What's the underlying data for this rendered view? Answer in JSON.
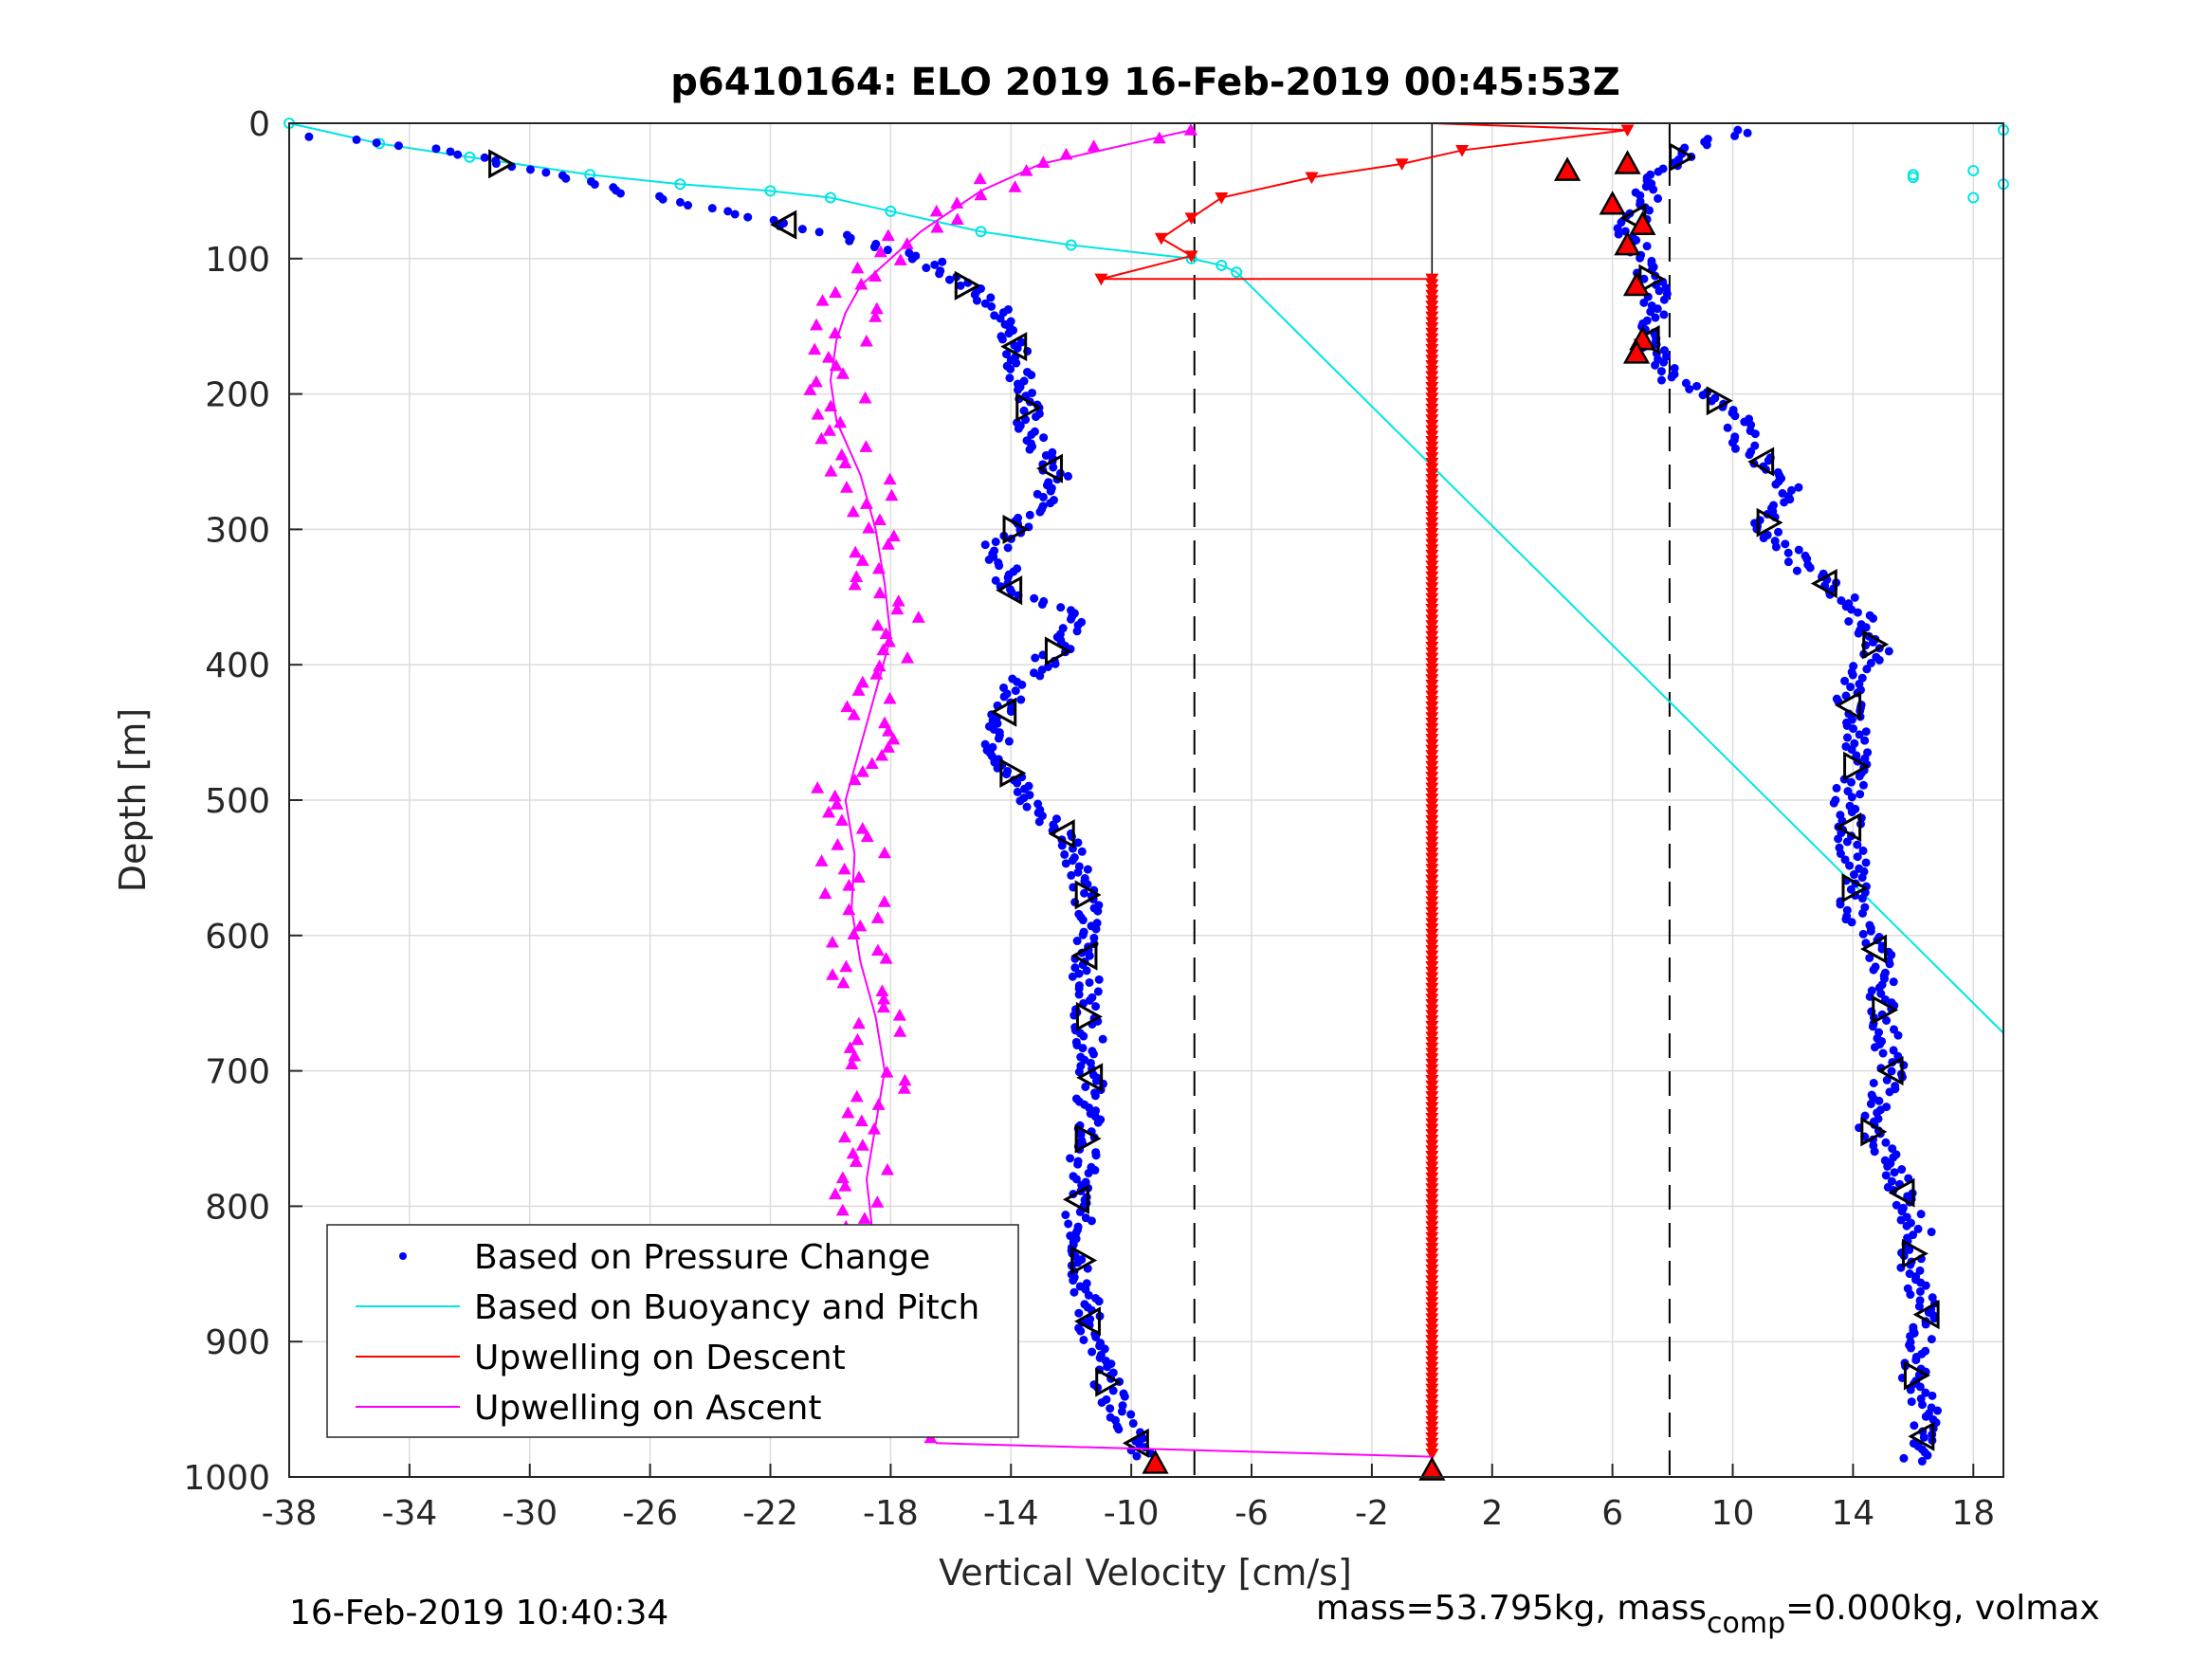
{
  "chart_data": {
    "type": "scatter",
    "title": "p6410164: ELO 2019 16-Feb-2019 00:45:53Z",
    "xlabel": "Vertical Velocity [cm/s]",
    "ylabel": "Depth [m]",
    "xlim": [
      -38,
      19
    ],
    "ylim": [
      0,
      1000
    ],
    "y_reversed": true,
    "grid": true,
    "x_ticks": [
      "-38",
      "-34",
      "-30",
      "-26",
      "-22",
      "-18",
      "-14",
      "-10",
      "-6",
      "-2",
      "2",
      "6",
      "10",
      "14",
      "18"
    ],
    "y_ticks": [
      "0",
      "100",
      "200",
      "300",
      "400",
      "500",
      "600",
      "700",
      "800",
      "900",
      "1000"
    ],
    "legend_position": "bottom-left",
    "legend": [
      "Based on Pressure Change",
      "Based on Buoyancy and Pitch",
      "Upwelling on Descent",
      "Upwelling on Ascent"
    ],
    "reference_lines_x": [
      -7.9,
      0,
      7.9
    ],
    "series": [
      {
        "name": "Based on Pressure Change",
        "style": "blue-dots",
        "color": "#0000ff",
        "branch_descent": [
          [
            -37,
            10
          ],
          [
            -33,
            20
          ],
          [
            -30,
            35
          ],
          [
            -27,
            50
          ],
          [
            -23,
            68
          ],
          [
            -20,
            82
          ],
          [
            -17,
            98
          ],
          [
            -15.5,
            120
          ],
          [
            -14,
            145
          ],
          [
            -13.8,
            170
          ],
          [
            -13.5,
            200
          ],
          [
            -13.4,
            230
          ],
          [
            -12.5,
            260
          ],
          [
            -13,
            285
          ],
          [
            -14.5,
            310
          ],
          [
            -14,
            345
          ],
          [
            -11.5,
            365
          ],
          [
            -12.5,
            390
          ],
          [
            -14,
            420
          ],
          [
            -14.5,
            460
          ],
          [
            -13.5,
            500
          ],
          [
            -12,
            530
          ],
          [
            -11.5,
            560
          ],
          [
            -11.5,
            600
          ],
          [
            -11.5,
            650
          ],
          [
            -11.3,
            700
          ],
          [
            -11.5,
            750
          ],
          [
            -11.8,
            800
          ],
          [
            -11.6,
            850
          ],
          [
            -11.3,
            900
          ],
          [
            -10.5,
            950
          ],
          [
            -9.5,
            985
          ]
        ],
        "branch_ascent": [
          [
            10.5,
            5
          ],
          [
            8.5,
            20
          ],
          [
            7.5,
            40
          ],
          [
            7,
            60
          ],
          [
            6.5,
            80
          ],
          [
            7,
            100
          ],
          [
            7.5,
            130
          ],
          [
            7.2,
            160
          ],
          [
            8,
            190
          ],
          [
            10,
            210
          ],
          [
            10.5,
            240
          ],
          [
            12,
            270
          ],
          [
            11,
            300
          ],
          [
            12.5,
            330
          ],
          [
            14,
            355
          ],
          [
            14.8,
            390
          ],
          [
            13.8,
            420
          ],
          [
            14.2,
            460
          ],
          [
            13.8,
            500
          ],
          [
            14,
            540
          ],
          [
            14,
            580
          ],
          [
            15,
            620
          ],
          [
            15,
            660
          ],
          [
            15.3,
            700
          ],
          [
            14.5,
            740
          ],
          [
            15.5,
            780
          ],
          [
            16.2,
            820
          ],
          [
            15.8,
            850
          ],
          [
            16.5,
            880
          ],
          [
            16,
            920
          ],
          [
            16.5,
            960
          ],
          [
            16,
            990
          ]
        ]
      },
      {
        "name": "Based on Buoyancy and Pitch",
        "style": "cyan-line",
        "color": "#00e5e5",
        "points": [
          [
            -38,
            0
          ],
          [
            -35,
            15
          ],
          [
            -32,
            25
          ],
          [
            -28,
            38
          ],
          [
            -25,
            45
          ],
          [
            -22,
            50
          ],
          [
            -20,
            55
          ],
          [
            -18,
            65
          ],
          [
            -15,
            80
          ],
          [
            -12,
            90
          ],
          [
            -8,
            100
          ],
          [
            -7,
            105
          ],
          [
            -6.5,
            110
          ],
          [
            19,
            672
          ]
        ],
        "extra_cluster_right": [
          [
            16,
            40
          ],
          [
            18,
            35
          ],
          [
            19,
            45
          ],
          [
            18,
            55
          ],
          [
            16,
            38
          ],
          [
            19,
            5
          ]
        ]
      },
      {
        "name": "Upwelling on Descent",
        "style": "red-line-down-triangles",
        "color": "#ff0000",
        "points": [
          [
            0,
            0
          ],
          [
            6.5,
            5
          ],
          [
            1,
            20
          ],
          [
            -1,
            30
          ],
          [
            -4,
            40
          ],
          [
            -7,
            55
          ],
          [
            -8,
            70
          ],
          [
            -9,
            85
          ],
          [
            -8,
            98
          ],
          [
            -11,
            115
          ],
          [
            0,
            115
          ],
          [
            0,
            985
          ]
        ],
        "ascent_markers": [
          [
            4.5,
            35
          ],
          [
            6.5,
            30
          ],
          [
            6,
            60
          ],
          [
            7,
            75
          ],
          [
            6.5,
            90
          ],
          [
            6.8,
            120
          ],
          [
            7,
            160
          ],
          [
            6.8,
            170
          ]
        ]
      },
      {
        "name": "Upwelling on Ascent",
        "style": "magenta-line-up-triangles",
        "color": "#ff00ff",
        "points": [
          [
            -8,
            5
          ],
          [
            -10,
            15
          ],
          [
            -13,
            30
          ],
          [
            -15,
            50
          ],
          [
            -16,
            65
          ],
          [
            -17,
            80
          ],
          [
            -18,
            100
          ],
          [
            -19,
            120
          ],
          [
            -19.5,
            140
          ],
          [
            -19.8,
            160
          ],
          [
            -20,
            190
          ],
          [
            -19.8,
            220
          ],
          [
            -19,
            260
          ],
          [
            -18.5,
            300
          ],
          [
            -18.2,
            340
          ],
          [
            -18,
            380
          ],
          [
            -18.5,
            420
          ],
          [
            -19,
            460
          ],
          [
            -19.5,
            500
          ],
          [
            -19.2,
            540
          ],
          [
            -19.3,
            580
          ],
          [
            -19,
            620
          ],
          [
            -18.5,
            660
          ],
          [
            -18.2,
            700
          ],
          [
            -18.5,
            740
          ],
          [
            -18.8,
            780
          ],
          [
            -18.6,
            820
          ],
          [
            -18.2,
            860
          ],
          [
            -18,
            900
          ],
          [
            -17.5,
            940
          ],
          [
            -16.5,
            970
          ]
        ]
      }
    ],
    "triangle_markers": "black open triangles along both pressure-change branches"
  },
  "footer": {
    "timestamp": "16-Feb-2019 10:40:34",
    "mass_prefix": "mass=53.795kg, mass",
    "mass_sub": "comp",
    "mass_suffix": "=0.000kg, volmax"
  }
}
